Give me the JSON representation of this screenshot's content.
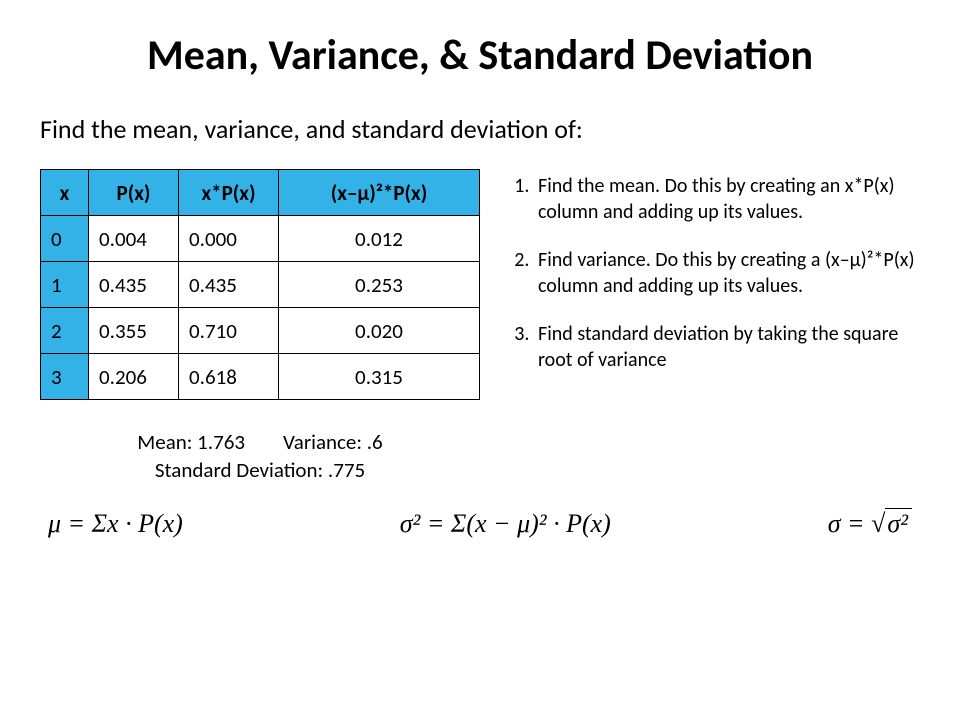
{
  "title": "Mean, Variance, & Standard Deviation",
  "prompt": "Find the mean, variance, and standard deviation of:",
  "table": {
    "header_bg": "#33b2e8",
    "x_col_bg": "#33b2e8",
    "border_color": "#000000",
    "columns": [
      "x",
      "P(x)",
      "x*P(x)",
      "(x–μ)²*P(x)"
    ],
    "rows": [
      [
        "0",
        "0.004",
        "0.000",
        "0.012"
      ],
      [
        "1",
        "0.435",
        "0.435",
        "0.253"
      ],
      [
        "2",
        "0.355",
        "0.710",
        "0.020"
      ],
      [
        "3",
        "0.206",
        "0.618",
        "0.315"
      ]
    ]
  },
  "results": {
    "line1": "Mean: 1.763        Variance: .6",
    "line2": "Standard Deviation: .775"
  },
  "steps": [
    "Find the mean. Do this by creating an x*P(x) column and adding up its values.",
    "Find variance. Do this by creating a (x–μ)²*P(x) column and adding up its values.",
    "Find standard deviation by taking the square root of variance"
  ],
  "formulas": {
    "mean": "μ = Σx · P(x)",
    "variance": "σ² = Σ(x − μ)² · P(x)",
    "stddev_lhs": "σ = ",
    "stddev_radicand": "σ²"
  },
  "style": {
    "background_color": "#ffffff",
    "text_color": "#000000",
    "title_fontsize": 42,
    "body_fontsize": 21,
    "step_fontsize": 20,
    "formula_fontsize": 26,
    "font_family": "Calibri"
  }
}
